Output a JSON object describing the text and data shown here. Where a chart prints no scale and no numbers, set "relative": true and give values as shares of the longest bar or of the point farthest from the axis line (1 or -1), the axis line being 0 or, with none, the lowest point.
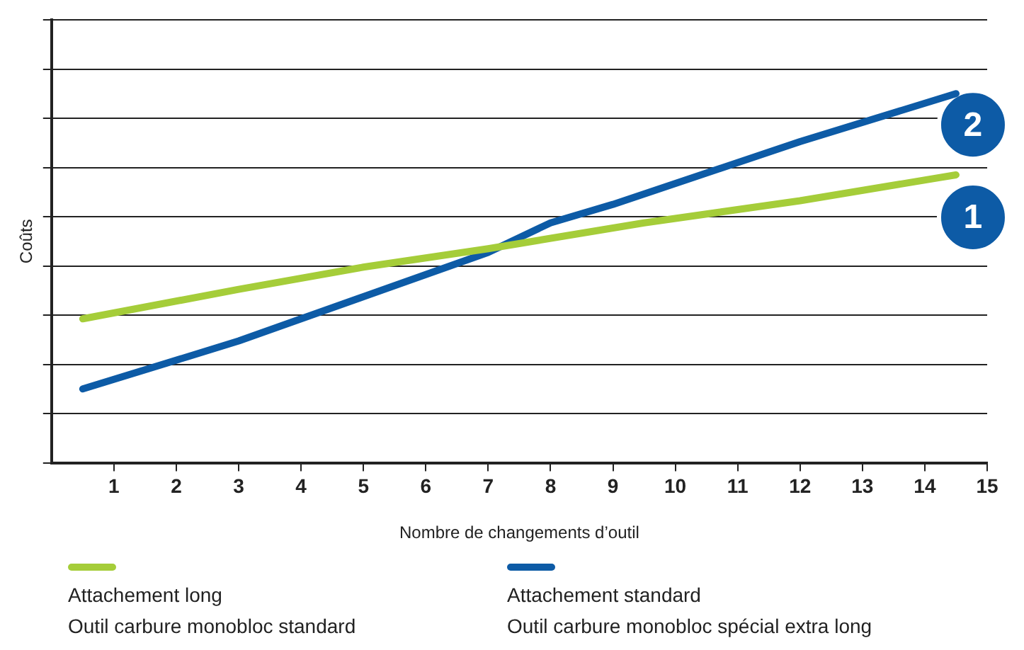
{
  "chart_data": {
    "type": "line",
    "relative": true,
    "xlabel": "Nombre de changements d’outil",
    "ylabel": "Coûts",
    "xlim": [
      0,
      15
    ],
    "xticks": [
      1,
      2,
      3,
      4,
      5,
      6,
      7,
      8,
      9,
      10,
      11,
      12,
      13,
      14,
      15
    ],
    "grid": "y",
    "legend": "bottom",
    "marker": "none",
    "series": [
      {
        "name": "Attachement long\nOutil carbure monobloc standard",
        "color": "#a5cd39",
        "x": [
          0.5,
          3,
          5,
          7,
          9.5,
          12,
          14.5
        ],
        "values": [
          0.39,
          0.47,
          0.53,
          0.58,
          0.65,
          0.71,
          0.78
        ]
      },
      {
        "name": "Attachement standard\nOutil carbure monobloc spécial extra long",
        "color": "#0d5ba6",
        "x": [
          0.5,
          3,
          5,
          7,
          8,
          9,
          12,
          14.5
        ],
        "values": [
          0.2,
          0.33,
          0.45,
          0.57,
          0.65,
          0.7,
          0.87,
          1
        ]
      }
    ],
    "annotations": [
      "1",
      "2"
    ]
  }
}
